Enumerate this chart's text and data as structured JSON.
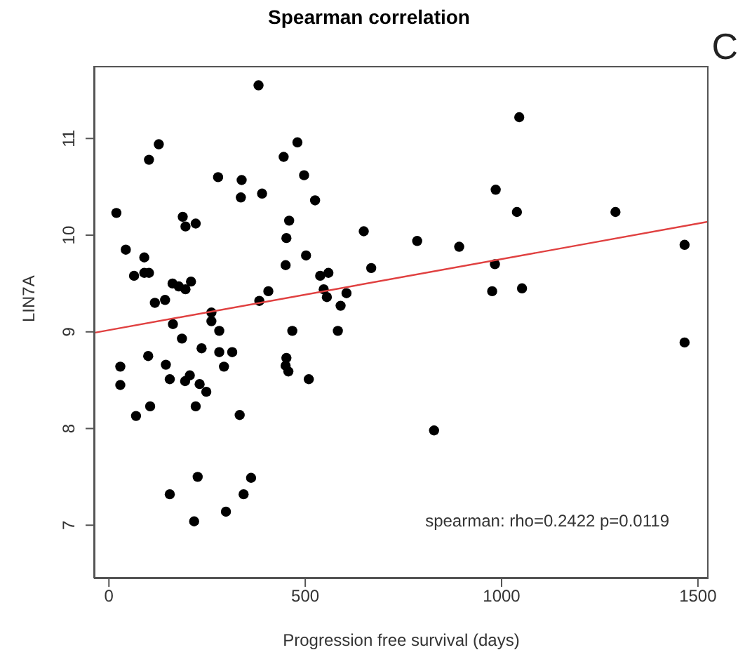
{
  "chart_data": {
    "type": "scatter",
    "title": "Spearman correlation",
    "xlabel": "Progression free survival (days)",
    "ylabel": "LIN7A",
    "annotations": [
      "spearman: rho=0.2422 p=0.0119",
      "C"
    ],
    "xlim": [
      -38,
      1527
    ],
    "ylim": [
      6.45,
      11.75
    ],
    "xticks": [
      0,
      500,
      1000,
      1500
    ],
    "yticks": [
      7,
      8,
      9,
      10,
      11
    ],
    "grid": false,
    "legend": false,
    "series": [
      {
        "marker": "circle",
        "color": "#000000",
        "x": [
          19,
          43,
          64,
          90,
          90,
          102,
          102,
          127,
          117,
          143,
          162,
          178,
          195,
          209,
          188,
          195,
          221,
          278,
          338,
          336,
          381,
          390,
          383,
          406,
          445,
          480,
          497,
          452,
          459,
          450,
          502,
          525,
          538,
          559,
          547,
          555,
          590,
          605,
          649,
          668,
          261,
          261,
          163,
          281,
          467,
          583,
          186,
          100,
          29,
          29,
          69,
          105,
          145,
          155,
          194,
          206,
          236,
          231,
          248,
          281,
          314,
          293,
          221,
          333,
          452,
          450,
          457,
          509,
          155,
          226,
          362,
          343,
          298,
          217,
          1045,
          985,
          1039,
          1290,
          785,
          892,
          1466,
          983,
          976,
          1052,
          1466,
          828
        ],
        "values": [
          10.23,
          9.85,
          9.58,
          9.77,
          9.61,
          9.61,
          10.78,
          10.94,
          9.3,
          9.33,
          9.5,
          9.47,
          9.44,
          9.52,
          10.19,
          10.09,
          10.12,
          10.6,
          10.57,
          10.39,
          11.55,
          10.43,
          9.32,
          9.42,
          10.81,
          10.96,
          10.62,
          9.97,
          10.15,
          9.69,
          9.79,
          10.36,
          9.58,
          9.61,
          9.44,
          9.36,
          9.27,
          9.4,
          10.04,
          9.66,
          9.2,
          9.11,
          9.08,
          9.01,
          9.01,
          9.01,
          8.93,
          8.75,
          8.64,
          8.45,
          8.13,
          8.23,
          8.66,
          8.51,
          8.49,
          8.55,
          8.83,
          8.46,
          8.38,
          8.79,
          8.79,
          8.64,
          8.23,
          8.14,
          8.73,
          8.65,
          8.59,
          8.51,
          7.32,
          7.5,
          7.49,
          7.32,
          7.14,
          7.04,
          11.22,
          10.47,
          10.24,
          10.24,
          9.94,
          9.88,
          9.9,
          9.7,
          9.42,
          9.45,
          8.89,
          7.98
        ]
      },
      {
        "type": "line",
        "color": "#e04040",
        "x": [
          -38,
          1527
        ],
        "values": [
          8.99,
          10.14
        ]
      }
    ]
  }
}
